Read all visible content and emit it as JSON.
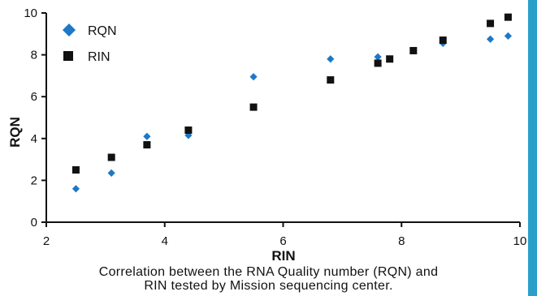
{
  "colors": {
    "frame": "#2a9fc9",
    "rqn": "#1f77c8",
    "rin": "#111111"
  },
  "chart_data": {
    "type": "scatter",
    "title": "",
    "xlabel": "RIN",
    "ylabel": "RQN",
    "xlim": [
      2,
      10
    ],
    "ylim": [
      0,
      10
    ],
    "xticks": [
      2,
      4,
      6,
      8,
      10
    ],
    "yticks": [
      0,
      2,
      4,
      6,
      8,
      10
    ],
    "grid": false,
    "legend": "top-left",
    "series": [
      {
        "name": "RQN",
        "marker": "diamond",
        "color": "#1f77c8",
        "points": [
          [
            2.5,
            1.6
          ],
          [
            3.1,
            2.35
          ],
          [
            3.7,
            4.1
          ],
          [
            4.4,
            4.15
          ],
          [
            5.5,
            6.95
          ],
          [
            6.8,
            7.8
          ],
          [
            7.6,
            7.9
          ],
          [
            8.7,
            8.55
          ],
          [
            9.5,
            8.75
          ],
          [
            9.8,
            8.9
          ]
        ]
      },
      {
        "name": "RIN",
        "marker": "square",
        "color": "#111111",
        "points": [
          [
            2.5,
            2.5
          ],
          [
            3.1,
            3.1
          ],
          [
            3.7,
            3.7
          ],
          [
            4.4,
            4.4
          ],
          [
            5.5,
            5.5
          ],
          [
            6.8,
            6.8
          ],
          [
            7.6,
            7.6
          ],
          [
            7.8,
            7.8
          ],
          [
            8.2,
            8.2
          ],
          [
            8.7,
            8.7
          ],
          [
            9.5,
            9.5
          ],
          [
            9.8,
            9.8
          ]
        ]
      }
    ]
  },
  "caption": {
    "line1": "Correlation between the RNA Quality number (RQN) and",
    "line2": "RIN tested by Mission sequencing center."
  }
}
